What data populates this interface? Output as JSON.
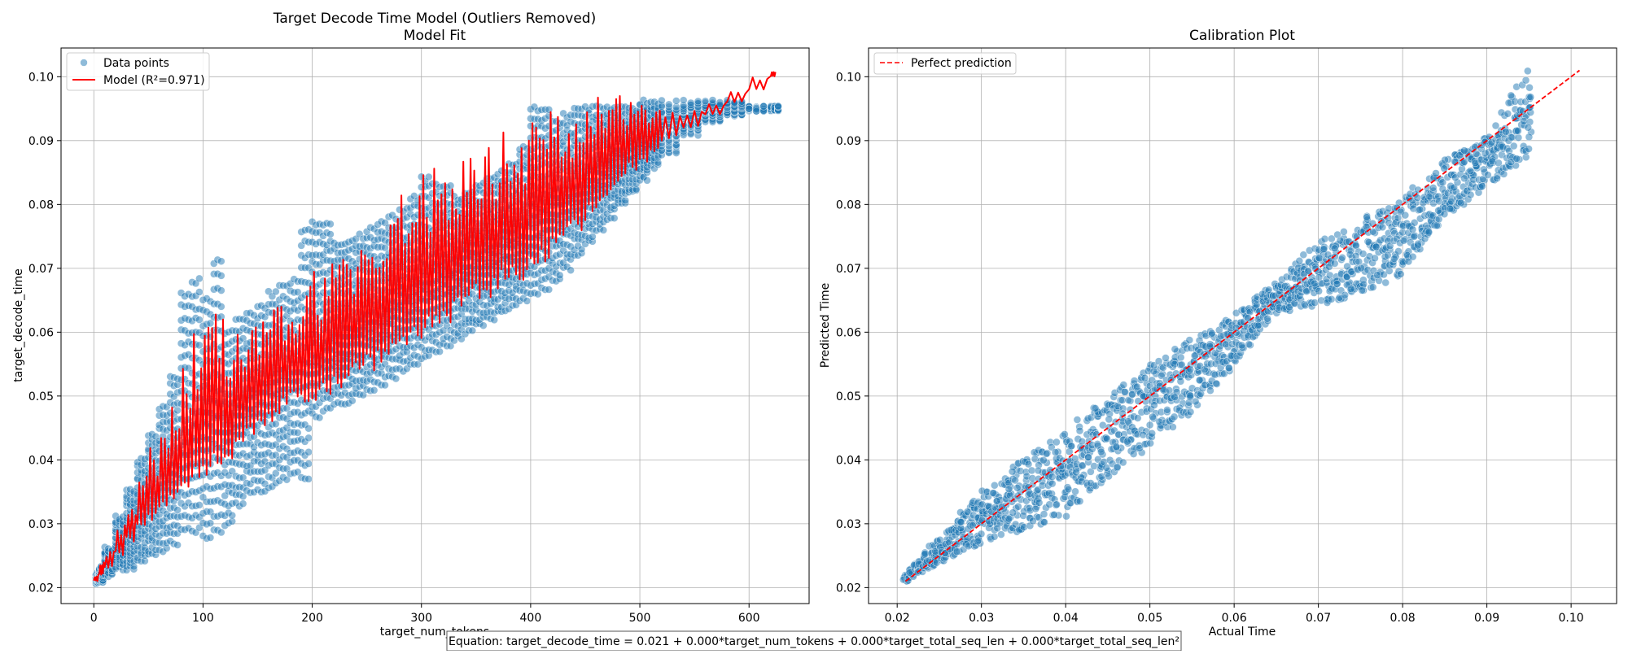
{
  "chart_data": [
    {
      "type": "scatter",
      "title": "Target Decode Time Model (Outliers Removed)",
      "subtitle": "Model Fit",
      "xlabel": "target_num_tokens",
      "ylabel": "target_decode_time",
      "xlim": [
        -30,
        655
      ],
      "ylim": [
        0.0175,
        0.1045
      ],
      "xticks": [
        0,
        100,
        200,
        300,
        400,
        500,
        600
      ],
      "yticks": [
        0.02,
        0.03,
        0.04,
        0.05,
        0.06,
        0.07,
        0.08,
        0.09,
        0.1
      ],
      "ytick_labels": [
        "0.02",
        "0.03",
        "0.04",
        "0.05",
        "0.06",
        "0.07",
        "0.08",
        "0.09",
        "0.10"
      ],
      "grid": true,
      "legend_position": "top-left",
      "series": [
        {
          "name": "Data points",
          "kind": "scatter",
          "color": "#1f77b4",
          "x": [
            2,
            5,
            10,
            20,
            30,
            40,
            50,
            60,
            70,
            80,
            90,
            100,
            110,
            120,
            130,
            140,
            150,
            160,
            170,
            180,
            190,
            200,
            210,
            220,
            230,
            240,
            250,
            260,
            270,
            280,
            290,
            300,
            310,
            320,
            330,
            340,
            350,
            360,
            370,
            380,
            390,
            400,
            410,
            420,
            430,
            440,
            450,
            460,
            470,
            480,
            490,
            500,
            510,
            520,
            540,
            560,
            580,
            600,
            620
          ],
          "y_min": [
            0.021,
            0.021,
            0.022,
            0.023,
            0.023,
            0.024,
            0.025,
            0.026,
            0.027,
            0.029,
            0.029,
            0.028,
            0.029,
            0.03,
            0.033,
            0.035,
            0.035,
            0.036,
            0.037,
            0.038,
            0.037,
            0.047,
            0.048,
            0.049,
            0.049,
            0.05,
            0.051,
            0.052,
            0.053,
            0.054,
            0.055,
            0.056,
            0.057,
            0.058,
            0.059,
            0.06,
            0.061,
            0.062,
            0.063,
            0.064,
            0.065,
            0.066,
            0.067,
            0.068,
            0.07,
            0.072,
            0.074,
            0.076,
            0.078,
            0.08,
            0.082,
            0.084,
            0.086,
            0.088,
            0.091,
            0.093,
            0.094,
            0.095,
            0.095
          ],
          "y_max": [
            0.022,
            0.023,
            0.026,
            0.031,
            0.035,
            0.04,
            0.044,
            0.048,
            0.053,
            0.066,
            0.068,
            0.065,
            0.071,
            0.06,
            0.062,
            0.063,
            0.064,
            0.066,
            0.067,
            0.068,
            0.076,
            0.077,
            0.077,
            0.074,
            0.074,
            0.075,
            0.076,
            0.077,
            0.078,
            0.079,
            0.081,
            0.084,
            0.083,
            0.083,
            0.081,
            0.082,
            0.083,
            0.084,
            0.085,
            0.086,
            0.089,
            0.095,
            0.095,
            0.093,
            0.094,
            0.095,
            0.095,
            0.095,
            0.095,
            0.095,
            0.095,
            0.096,
            0.096,
            0.096,
            0.096,
            0.096,
            0.096,
            0.095,
            0.095
          ]
        },
        {
          "name": "Model (R²=0.971)",
          "kind": "line",
          "color": "#ff0000",
          "x": [
            0,
            5,
            10,
            20,
            30,
            40,
            50,
            60,
            70,
            80,
            90,
            100,
            110,
            120,
            130,
            140,
            150,
            160,
            170,
            180,
            190,
            200,
            210,
            220,
            230,
            240,
            250,
            260,
            270,
            280,
            290,
            300,
            310,
            320,
            330,
            340,
            350,
            360,
            370,
            380,
            390,
            400,
            410,
            420,
            430,
            440,
            450,
            460,
            470,
            480,
            490,
            500,
            510,
            520,
            540,
            560,
            580,
            600,
            620
          ],
          "y_low": [
            0.021,
            0.022,
            0.023,
            0.025,
            0.027,
            0.029,
            0.03,
            0.032,
            0.033,
            0.035,
            0.036,
            0.037,
            0.039,
            0.04,
            0.042,
            0.043,
            0.044,
            0.045,
            0.047,
            0.048,
            0.049,
            0.049,
            0.05,
            0.051,
            0.052,
            0.053,
            0.054,
            0.055,
            0.056,
            0.057,
            0.058,
            0.059,
            0.06,
            0.061,
            0.062,
            0.063,
            0.064,
            0.065,
            0.066,
            0.067,
            0.068,
            0.07,
            0.071,
            0.072,
            0.074,
            0.075,
            0.077,
            0.079,
            0.081,
            0.083,
            0.085,
            0.086,
            0.088,
            0.09,
            0.092,
            0.094,
            0.096,
            0.098,
            0.1
          ],
          "y_high": [
            0.022,
            0.024,
            0.026,
            0.03,
            0.034,
            0.038,
            0.042,
            0.046,
            0.05,
            0.055,
            0.06,
            0.062,
            0.064,
            0.059,
            0.06,
            0.061,
            0.062,
            0.064,
            0.066,
            0.067,
            0.068,
            0.07,
            0.072,
            0.073,
            0.074,
            0.075,
            0.076,
            0.078,
            0.08,
            0.082,
            0.083,
            0.085,
            0.086,
            0.087,
            0.088,
            0.089,
            0.09,
            0.091,
            0.092,
            0.092,
            0.093,
            0.094,
            0.095,
            0.095,
            0.096,
            0.096,
            0.097,
            0.097,
            0.097,
            0.097,
            0.097,
            0.097,
            0.097,
            0.096,
            0.095,
            0.096,
            0.098,
            0.1,
            0.101
          ]
        }
      ]
    },
    {
      "type": "scatter",
      "title": "Calibration Plot",
      "xlabel": "Actual Time",
      "ylabel": "Predicted Time",
      "xlim": [
        0.0166,
        0.1054
      ],
      "ylim": [
        0.0175,
        0.1045
      ],
      "xticks": [
        0.02,
        0.03,
        0.04,
        0.05,
        0.06,
        0.07,
        0.08,
        0.09,
        0.1
      ],
      "xtick_labels": [
        "0.02",
        "0.03",
        "0.04",
        "0.05",
        "0.06",
        "0.07",
        "0.08",
        "0.09",
        "0.10"
      ],
      "yticks": [
        0.02,
        0.03,
        0.04,
        0.05,
        0.06,
        0.07,
        0.08,
        0.09,
        0.1
      ],
      "ytick_labels": [
        "0.02",
        "0.03",
        "0.04",
        "0.05",
        "0.06",
        "0.07",
        "0.08",
        "0.09",
        "0.10"
      ],
      "grid": true,
      "legend_position": "top-left",
      "series": [
        {
          "name": "",
          "kind": "scatter",
          "color": "#1f77b4",
          "x": [
            0.021,
            0.025,
            0.03,
            0.035,
            0.04,
            0.045,
            0.05,
            0.055,
            0.06,
            0.065,
            0.07,
            0.075,
            0.08,
            0.085,
            0.09,
            0.095
          ],
          "y_min": [
            0.021,
            0.024,
            0.027,
            0.029,
            0.031,
            0.037,
            0.042,
            0.047,
            0.055,
            0.063,
            0.064,
            0.066,
            0.069,
            0.078,
            0.083,
            0.087
          ],
          "y_max": [
            0.022,
            0.028,
            0.035,
            0.04,
            0.045,
            0.05,
            0.055,
            0.059,
            0.063,
            0.068,
            0.074,
            0.078,
            0.081,
            0.087,
            0.091,
            0.101
          ]
        },
        {
          "name": "Perfect prediction",
          "kind": "line",
          "color": "#ff0000",
          "dashed": true,
          "x": [
            0.021,
            0.101
          ],
          "y": [
            0.021,
            0.101
          ]
        }
      ]
    }
  ],
  "equation": "Equation: target_decode_time = 0.021 + 0.000*target_num_tokens + 0.000*target_total_seq_len + 0.000*target_total_seq_len²"
}
